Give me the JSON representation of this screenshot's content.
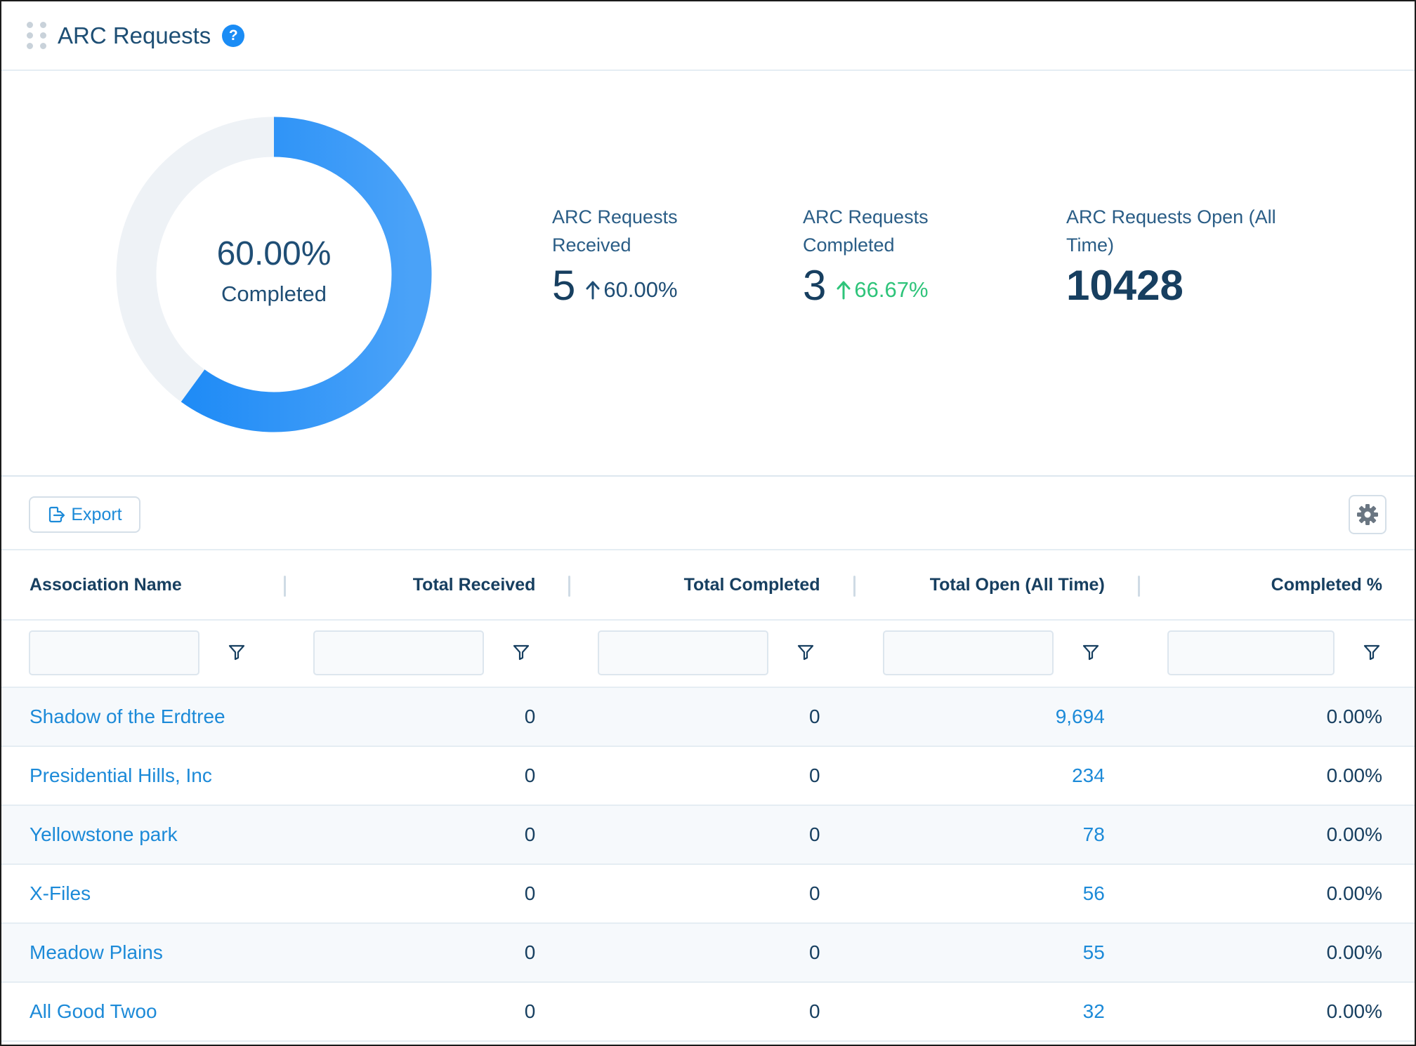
{
  "header": {
    "title": "ARC Requests",
    "help_glyph": "?"
  },
  "summary": {
    "completion_fraction": 0.6,
    "donut_percent": "60.00%",
    "donut_label": "Completed",
    "colors": {
      "track": "#eef2f6",
      "arc_start": "#1586f6",
      "arc_end": "#4aa2f8",
      "positive_change": "#2ec47a"
    },
    "stats": [
      {
        "label_line1": "ARC Requests",
        "label_line2": "Received",
        "value": "5",
        "change": "60.00%",
        "change_color": "#1f4e75"
      },
      {
        "label_line1": "ARC Requests",
        "label_line2": "Completed",
        "value": "3",
        "change": "66.67%",
        "change_color": "#2ec47a"
      },
      {
        "label_line1": "ARC Requests Open (All",
        "label_line2": "Time)",
        "value": "10428"
      }
    ]
  },
  "toolbar": {
    "export_label": "Export",
    "export_icon": "export-file-icon",
    "settings_icon": "gear-icon"
  },
  "table": {
    "columns": [
      "Association Name",
      "Total Received",
      "Total Completed",
      "Total Open (All Time)",
      "Completed %"
    ],
    "rows": [
      [
        "Shadow of the Erdtree",
        "0",
        "0",
        "9,694",
        "0.00%"
      ],
      [
        "Presidential Hills, Inc",
        "0",
        "0",
        "234",
        "0.00%"
      ],
      [
        "Yellowstone park",
        "0",
        "0",
        "78",
        "0.00%"
      ],
      [
        "X-Files",
        "0",
        "0",
        "56",
        "0.00%"
      ],
      [
        "Meadow Plains",
        "0",
        "0",
        "55",
        "0.00%"
      ],
      [
        "All Good Twoo",
        "0",
        "0",
        "32",
        "0.00%"
      ]
    ]
  }
}
